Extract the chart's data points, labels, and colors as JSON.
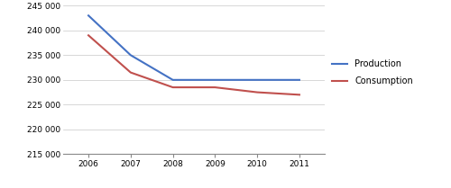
{
  "years": [
    2006,
    2007,
    2008,
    2009,
    2010,
    2011
  ],
  "production": [
    243000,
    235000,
    230000,
    230000,
    230000,
    230000
  ],
  "consumption": [
    239000,
    231500,
    228500,
    228500,
    227500,
    227000
  ],
  "production_color": "#4472C4",
  "consumption_color": "#C0504D",
  "ylim": [
    215000,
    245000
  ],
  "yticks": [
    215000,
    220000,
    225000,
    230000,
    235000,
    240000,
    245000
  ],
  "xticks": [
    2006,
    2007,
    2008,
    2009,
    2010,
    2011
  ],
  "legend_production": "Production",
  "legend_consumption": "Consumption",
  "line_width": 1.5,
  "background_color": "#ffffff",
  "grid_color": "#c8c8c8"
}
